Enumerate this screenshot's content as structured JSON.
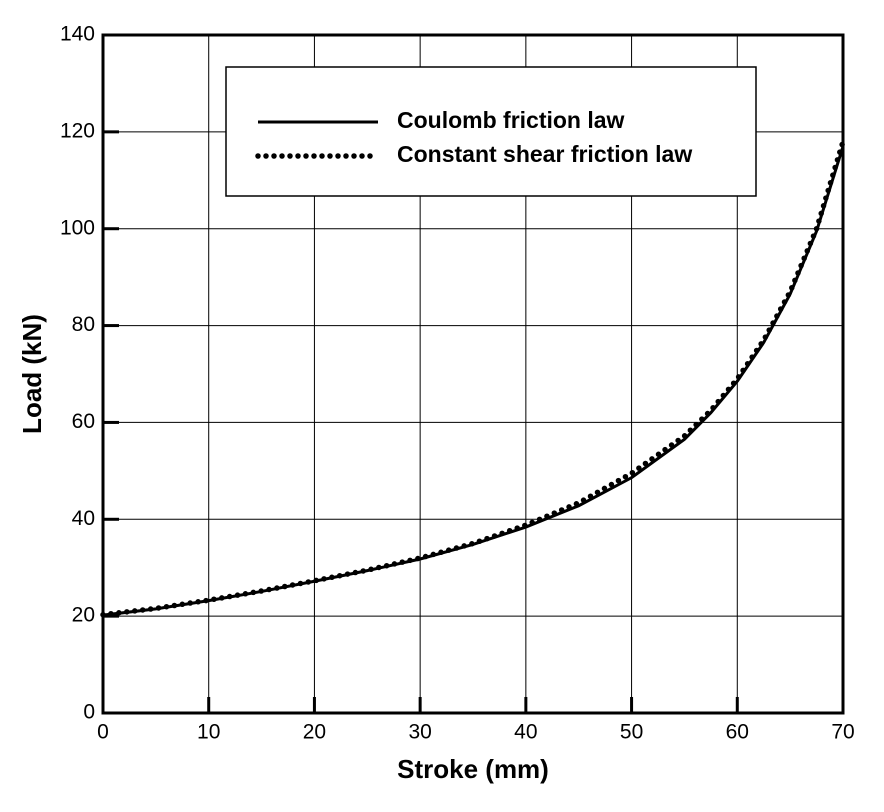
{
  "chart_data": {
    "type": "line",
    "x_label": "Stroke (mm)",
    "y_label": "Load (kN)",
    "x": [
      0,
      5,
      10,
      15,
      20,
      25,
      30,
      35,
      40,
      45,
      50,
      55,
      57.5,
      60,
      62.5,
      65,
      67.5,
      70
    ],
    "series": [
      {
        "name": "Coulomb friction law",
        "color": "#000000",
        "style": "solid",
        "values": [
          20.2,
          21.5,
          23.2,
          25.1,
          27.2,
          29.4,
          31.8,
          34.8,
          38.4,
          42.8,
          48.6,
          56.5,
          62,
          68.5,
          76.5,
          86.5,
          99.5,
          117
        ]
      },
      {
        "name": "Constant shear friction law",
        "color": "#000000",
        "style": "dotted",
        "values": [
          20.3,
          21.6,
          23.3,
          25.2,
          27.3,
          29.5,
          32,
          35,
          38.8,
          43.4,
          49.5,
          57.2,
          62.5,
          69,
          77,
          87,
          100,
          118
        ]
      }
    ],
    "xlim": [
      0,
      70
    ],
    "xticks": [
      0,
      10,
      20,
      30,
      40,
      50,
      60,
      70
    ],
    "ylim": [
      0,
      140
    ],
    "yticks": [
      0,
      20,
      40,
      60,
      80,
      100,
      120,
      140
    ],
    "grid": true,
    "legend": "top"
  }
}
